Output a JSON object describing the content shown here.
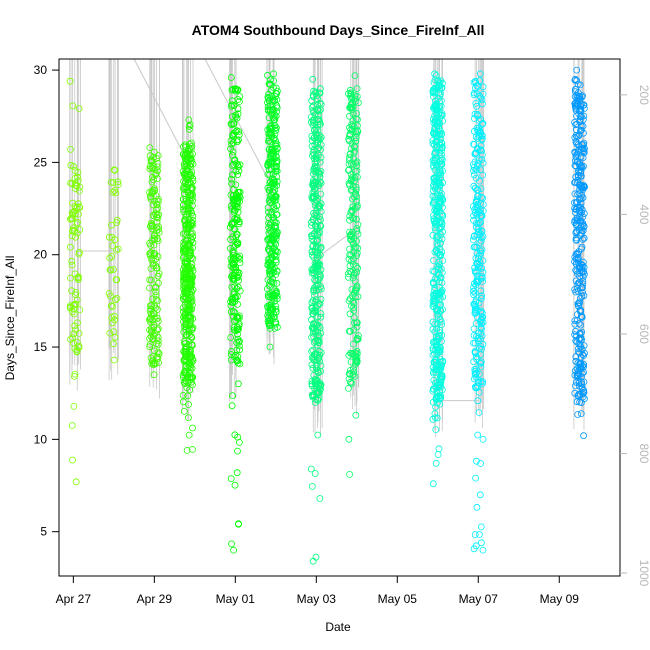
{
  "chart_data": {
    "type": "scatter",
    "title": "ATOM4 Southbound Days_Since_FireInf_All",
    "xlabel": "Date",
    "ylabel": "Days_Since_FireInf_All",
    "xlim": [
      "2016-04-26T15:30",
      "2016-05-10T12:00"
    ],
    "ylim": [
      2.6,
      30.6
    ],
    "x_ticks": [
      {
        "date": "2016-04-27",
        "label": "Apr 27"
      },
      {
        "date": "2016-04-29",
        "label": "Apr 29"
      },
      {
        "date": "2016-05-01",
        "label": "May 01"
      },
      {
        "date": "2016-05-03",
        "label": "May 03"
      },
      {
        "date": "2016-05-05",
        "label": "May 05"
      },
      {
        "date": "2016-05-07",
        "label": "May 07"
      },
      {
        "date": "2016-05-09",
        "label": "May 09"
      }
    ],
    "y_ticks": [
      5,
      10,
      15,
      20,
      25,
      30
    ],
    "y2_ticks": [
      200,
      400,
      600,
      800,
      1000
    ],
    "y2lim": [
      1005,
      140
    ],
    "grid": false,
    "marker": "open circle",
    "legend": "none",
    "colors": {
      "yellowgreen": "#7fff00",
      "green": "#00ff00",
      "springgreen": "#00ff7f",
      "spring2": "#00ff60",
      "cyan": "#00ffff",
      "cyan2": "#00e5ff",
      "azure": "#0099ff",
      "line": "#c8c8c8",
      "axis": "#000000",
      "y2tick": "#b8b8b8"
    },
    "series": [
      {
        "date": "2016-04-27T01:00",
        "color": "#7fff00",
        "count": 90,
        "y_min": 7.7,
        "y_max": 29.4,
        "core": [
          14.5,
          25
        ],
        "seed": 11
      },
      {
        "date": "2016-04-28T00:00",
        "color": "#7fff00",
        "count": 40,
        "y_min": 14.3,
        "y_max": 24.6,
        "core": [
          15,
          24
        ],
        "seed": 12
      },
      {
        "date": "2016-04-29T00:00",
        "color": "#44ff00",
        "count": 160,
        "y_min": 13.5,
        "y_max": 25.8,
        "core": [
          14,
          25.5
        ],
        "seed": 13
      },
      {
        "date": "2016-04-29T20:00",
        "color": "#22ff00",
        "count": 420,
        "y_min": 9.4,
        "y_max": 27.3,
        "core": [
          13,
          26
        ],
        "seed": 14
      },
      {
        "date": "2016-05-01T00:00",
        "color": "#00ff00",
        "count": 230,
        "y_min": 4.0,
        "y_max": 29.6,
        "core": [
          14,
          29
        ],
        "seed": 15
      },
      {
        "date": "2016-05-01T22:00",
        "color": "#00ff22",
        "count": 320,
        "y_min": 15.0,
        "y_max": 29.8,
        "core": [
          16,
          29.5
        ],
        "seed": 16
      },
      {
        "date": "2016-05-03T00:00",
        "color": "#00ff7f",
        "count": 330,
        "y_min": 3.4,
        "y_max": 29.5,
        "core": [
          12,
          29
        ],
        "seed": 17
      },
      {
        "date": "2016-05-03T22:00",
        "color": "#00ff66",
        "count": 210,
        "y_min": 8.1,
        "y_max": 29.7,
        "core": [
          13,
          29
        ],
        "seed": 18
      },
      {
        "date": "2016-05-06T00:00",
        "color": "#00ffe0",
        "count": 420,
        "y_min": 7.6,
        "y_max": 29.8,
        "core": [
          12,
          29.5
        ],
        "seed": 19
      },
      {
        "date": "2016-05-07T00:00",
        "color": "#00f0ff",
        "count": 260,
        "y_min": 4.0,
        "y_max": 29.8,
        "core": [
          12.5,
          29.5
        ],
        "seed": 20
      },
      {
        "date": "2016-05-09T12:00",
        "color": "#0099ff",
        "count": 330,
        "y_min": 10.2,
        "y_max": 30.0,
        "core": [
          12,
          29.5
        ],
        "seed": 21
      }
    ]
  }
}
